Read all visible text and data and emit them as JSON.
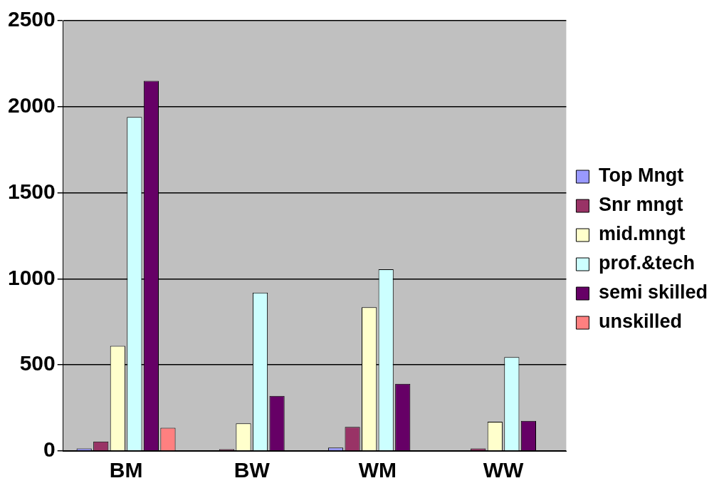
{
  "chart_data": {
    "type": "bar",
    "categories": [
      "BM",
      "BW",
      "WM",
      "WW"
    ],
    "series": [
      {
        "name": "Top Mngt",
        "color": "#9999ff",
        "values": [
          15,
          null,
          20,
          null
        ]
      },
      {
        "name": "Snr mngt",
        "color": "#993366",
        "values": [
          55,
          10,
          140,
          15
        ]
      },
      {
        "name": "mid.mngt",
        "color": "#ffffcc",
        "values": [
          610,
          160,
          835,
          170
        ]
      },
      {
        "name": "prof.&tech",
        "color": "#ccffff",
        "values": [
          1940,
          920,
          1055,
          545
        ]
      },
      {
        "name": "semi skilled",
        "color": "#660066",
        "values": [
          2150,
          320,
          390,
          175
        ]
      },
      {
        "name": "unskilled",
        "color": "#ff8080",
        "values": [
          135,
          null,
          null,
          null
        ]
      }
    ],
    "ylim": [
      0,
      2500
    ],
    "yticks": [
      0,
      500,
      1000,
      1500,
      2000,
      2500
    ],
    "grid": "y",
    "legend": "right"
  }
}
